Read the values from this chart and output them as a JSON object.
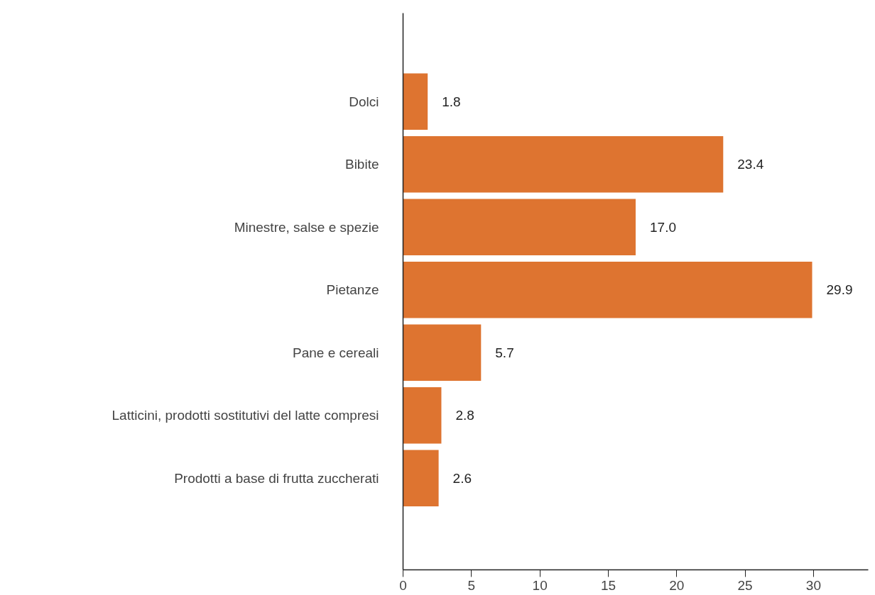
{
  "chart_data": {
    "type": "bar",
    "orientation": "horizontal",
    "categories": [
      "Dolci",
      "Bibite",
      "Minestre, salse e spezie",
      "Pietanze",
      "Pane e cereali",
      "Latticini, prodotti sostitutivi del latte compresi",
      "Prodotti a base di frutta zuccherati"
    ],
    "values": [
      1.8,
      23.4,
      17.0,
      29.9,
      5.7,
      2.8,
      2.6
    ],
    "value_labels": [
      "1.8",
      "23.4",
      "17.0",
      "29.9",
      "5.7",
      "2.8",
      "2.6"
    ],
    "color": "#de7430",
    "xlim": [
      0,
      34
    ],
    "xticks": [
      0,
      5,
      10,
      15,
      20,
      25,
      30
    ],
    "grid": false
  }
}
